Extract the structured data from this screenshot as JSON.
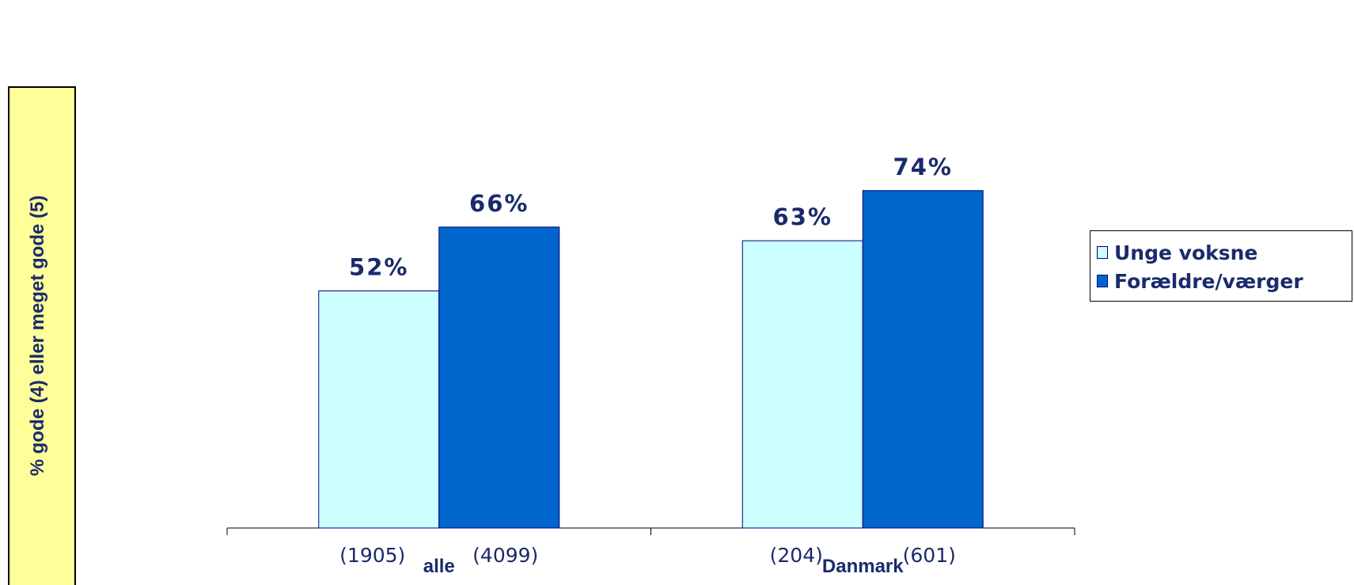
{
  "chart_data": {
    "type": "bar",
    "categories": [
      "alle",
      "Danmark"
    ],
    "category_counts": [
      [
        "(1905)",
        "(4099)"
      ],
      [
        "(204)",
        "(601)"
      ]
    ],
    "series": [
      {
        "name": "Unge voksne",
        "values": [
          52,
          63
        ],
        "labels": [
          "52%",
          "63%"
        ],
        "color": "#ccffff"
      },
      {
        "name": "Forældre/værger",
        "values": [
          66,
          74
        ],
        "labels": [
          "66%",
          "74%"
        ],
        "color": "#0066cc"
      }
    ],
    "ylabel": "% gode (4) eller meget gode (5)",
    "ylim": [
      0,
      100
    ],
    "grid": false,
    "legend_position": "right",
    "label_color": "#1a2a6c",
    "bar_outline_color": "#000080"
  }
}
